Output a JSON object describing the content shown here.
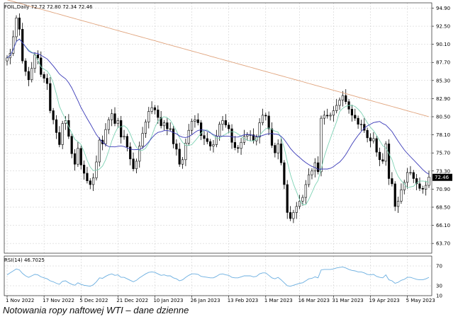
{
  "header": {
    "title": "FOIL,Daily 72.72 72.80 72.34 72.46"
  },
  "caption": "Notowania ropy naftowej WTI – dane dzienne",
  "colors": {
    "grid": "#c8c8c8",
    "candle": "#000000",
    "ma_long": "#e0a37c",
    "ma_mid": "#3a3ab8",
    "ma_short": "#7ed2b4",
    "rsi": "#6aaee0",
    "price_tag_bg": "#000000",
    "price_tag_fg": "#ffffff"
  },
  "chart_data": [
    {
      "type": "candlestick",
      "title": "FOIL,Daily 72.72 72.80 72.34 72.46",
      "ylim": [
        62.4,
        95.6
      ],
      "grid": true,
      "y_ticks": [
        "94.90",
        "92.50",
        "90.10",
        "87.70",
        "85.30",
        "82.90",
        "80.50",
        "78.10",
        "75.70",
        "73.30",
        "70.90",
        "68.50",
        "66.10",
        "63.70"
      ],
      "current_price": "72.46",
      "x_ticks": [
        {
          "label": "1 Nov 2022",
          "index": 0
        },
        {
          "label": "17 Nov 2022",
          "index": 12
        },
        {
          "label": "5 Dec 2022",
          "index": 24
        },
        {
          "label": "21 Dec 2022",
          "index": 36
        },
        {
          "label": "10 Jan 2023",
          "index": 48
        },
        {
          "label": "26 Jan 2023",
          "index": 60
        },
        {
          "label": "13 Feb 2023",
          "index": 72
        },
        {
          "label": "1 Mar 2023",
          "index": 84
        },
        {
          "label": "16 Mar 2023",
          "index": 95
        },
        {
          "label": "31 Mar 2023",
          "index": 106
        },
        {
          "label": "19 Apr 2023",
          "index": 118
        },
        {
          "label": "5 May 2023",
          "index": 130
        }
      ],
      "closes": [
        88.3,
        88.9,
        91.1,
        93.6,
        92.1,
        87.9,
        86.5,
        85.4,
        86.9,
        88.7,
        88.3,
        86.1,
        85.6,
        84.9,
        81.3,
        80.1,
        78.4,
        76.8,
        79.6,
        80.0,
        77.9,
        75.6,
        74.2,
        76.3,
        74.1,
        73.0,
        72.0,
        71.5,
        72.4,
        74.5,
        77.4,
        76.9,
        78.8,
        80.1,
        80.9,
        79.6,
        80.0,
        77.8,
        77.9,
        76.5,
        74.9,
        73.6,
        74.6,
        76.6,
        78.3,
        79.8,
        81.2,
        81.7,
        81.4,
        80.4,
        79.3,
        79.7,
        78.9,
        78.9,
        76.9,
        76.2,
        74.2,
        74.8,
        77.0,
        78.7,
        79.9,
        80.1,
        79.7,
        78.0,
        77.6,
        77.2,
        76.6,
        76.8,
        77.9,
        79.5,
        80.0,
        79.4,
        78.9,
        77.1,
        76.4,
        76.3,
        77.1,
        77.9,
        78.1,
        78.1,
        77.3,
        77.8,
        79.7,
        80.7,
        80.6,
        78.9,
        76.7,
        75.7,
        76.9,
        74.4,
        71.5,
        67.8,
        67.0,
        67.8,
        68.6,
        69.3,
        69.8,
        71.5,
        72.8,
        73.3,
        74.4,
        73.2,
        80.3,
        80.7,
        80.6,
        80.7,
        81.3,
        82.0,
        82.7,
        83.3,
        82.5,
        81.5,
        80.7,
        80.3,
        79.5,
        79.5,
        78.7,
        77.7,
        77.3,
        77.6,
        75.8,
        74.8,
        74.6,
        76.9,
        72.3,
        71.6,
        68.6,
        69.3,
        70.8,
        71.8,
        73.1,
        73.1,
        72.3,
        71.6,
        71.0,
        70.9,
        71.4,
        72.5
      ]
    },
    {
      "type": "line",
      "title": "RSI(14) 46.7025",
      "ylim": [
        10,
        90
      ],
      "y_ticks": [
        "70",
        "30",
        "10"
      ],
      "series": [
        {
          "values": [
            52,
            56,
            60,
            64,
            62,
            55,
            50,
            47,
            50,
            53,
            52,
            48,
            46,
            44,
            40,
            38,
            35,
            33,
            39,
            40,
            36,
            33,
            31,
            36,
            33,
            31,
            30,
            29,
            32,
            38,
            46,
            45,
            49,
            52,
            54,
            51,
            52,
            47,
            47,
            44,
            41,
            38,
            41,
            46,
            50,
            54,
            57,
            58,
            57,
            54,
            51,
            52,
            50,
            50,
            46,
            44,
            40,
            42,
            47,
            51,
            54,
            54,
            53,
            49,
            48,
            47,
            46,
            46,
            49,
            53,
            54,
            52,
            51,
            47,
            46,
            46,
            48,
            50,
            50,
            50,
            48,
            49,
            54,
            56,
            56,
            51,
            46,
            44,
            47,
            42,
            36,
            30,
            29,
            31,
            33,
            35,
            36,
            40,
            44,
            45,
            48,
            46,
            62,
            63,
            63,
            63,
            64,
            66,
            67,
            68,
            66,
            63,
            61,
            60,
            58,
            58,
            56,
            53,
            52,
            53,
            49,
            47,
            46,
            52,
            42,
            40,
            35,
            37,
            41,
            43,
            47,
            47,
            45,
            43,
            42,
            42,
            44,
            47
          ]
        }
      ]
    }
  ]
}
